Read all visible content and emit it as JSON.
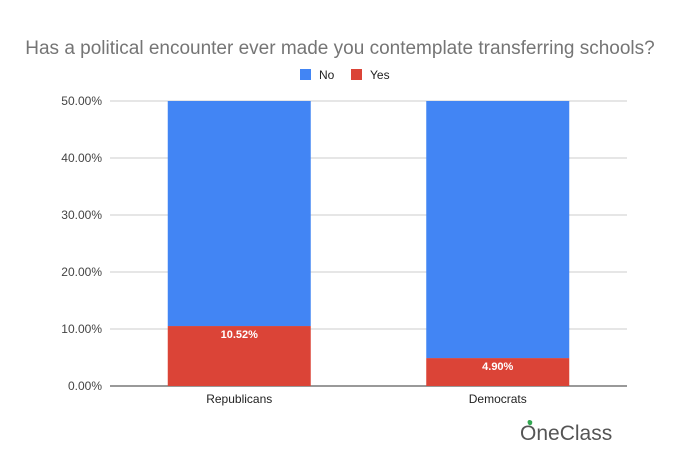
{
  "chart_data": {
    "type": "bar",
    "stacked": true,
    "title": "Has a political encounter ever made you contemplate transferring schools?",
    "xlabel": "",
    "ylabel": "",
    "categories": [
      "Republicans",
      "Democrats"
    ],
    "series": [
      {
        "name": "No",
        "color": "#4285F4",
        "values": [
          39.48,
          45.1
        ]
      },
      {
        "name": "Yes",
        "color": "#DB4437",
        "values": [
          10.52,
          4.9
        ]
      }
    ],
    "data_labels": [
      "10.52%",
      "4.90%"
    ],
    "ylim": [
      0,
      50
    ],
    "yticks": [
      0,
      10,
      20,
      30,
      40,
      50
    ],
    "ytick_labels": [
      "0.00%",
      "10.00%",
      "20.00%",
      "30.00%",
      "40.00%",
      "50.00%"
    ],
    "grid": true,
    "legend_position": "top-center"
  },
  "brand": {
    "logo_text": "OneClass",
    "leaf_color": "#34a853"
  }
}
